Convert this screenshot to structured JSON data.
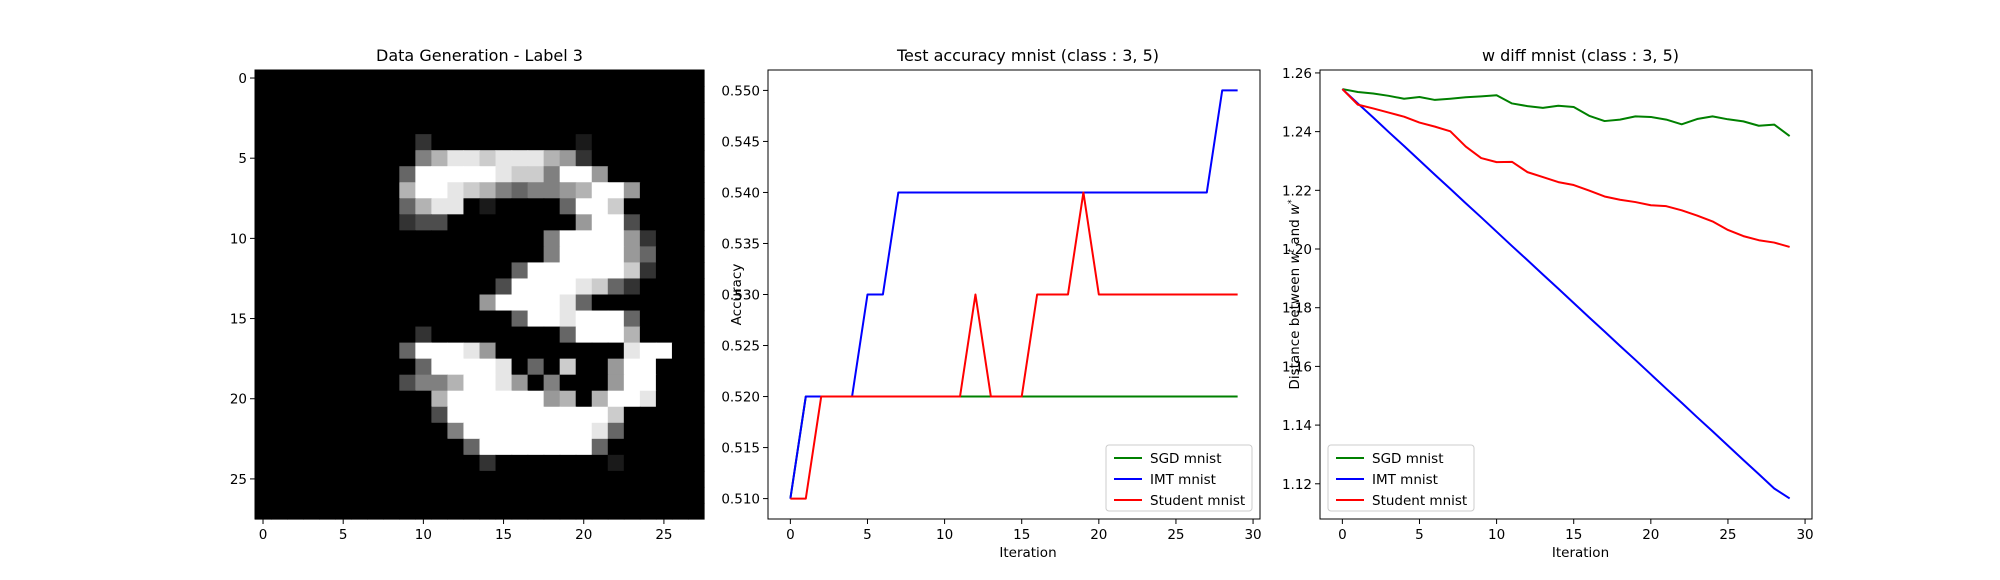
{
  "chart_data": [
    {
      "type": "heatmap",
      "title": "Data Generation - Label 3",
      "xlabel": "",
      "ylabel": "",
      "xticks": [
        0,
        5,
        10,
        15,
        20,
        25
      ],
      "yticks": [
        0,
        5,
        10,
        15,
        20,
        25
      ],
      "grid": false,
      "colormap": "gray",
      "image_rows": [
        "............................",
        "............................",
        "............................",
        "............................",
        "..........2.........1.......",
        "..........57998999762.......",
        ".........4aaaaa9885aa6......",
        ".........7aa987545567aa6....",
        ".........4799.1....4aa8.....",
        ".........233........6aa3....",
        "..................5aaaa62...",
        "..................5aaaa64...",
        "................4aaaaaa82...",
        "...............3aaaa9842....",
        "..............6aaaa94.......",
        "................4aa9aaa4....",
        "..........2........4aaa7....",
        ".........4aaa96........9aa...",
        "..........4aaaa9.4.8..6aa...",
        ".........3557aa96.5...6aa...",
        "...........7aaaaaa67.7aa9...",
        "...........3aaaaaaaaaa8.....",
        "............5aaaaaaaa94.....",
        ".............4aaaaaaa4......",
        "..............2.......1.....",
        "............................",
        "............................",
        "............................"
      ]
    },
    {
      "type": "line",
      "title": "Test accuracy mnist (class : 3, 5)",
      "xlabel": "Iteration",
      "ylabel": "Accuracy",
      "xlim": [
        -1.45,
        30.45
      ],
      "ylim": [
        0.508,
        0.552
      ],
      "xticks": [
        "0",
        "5",
        "10",
        "15",
        "20",
        "25",
        "30"
      ],
      "yticks": [
        "0.510",
        "0.515",
        "0.520",
        "0.525",
        "0.530",
        "0.535",
        "0.540",
        "0.545",
        "0.550"
      ],
      "grid": false,
      "legend": "lower-right",
      "x": [
        0,
        1,
        2,
        3,
        4,
        5,
        6,
        7,
        8,
        9,
        10,
        11,
        12,
        13,
        14,
        15,
        16,
        17,
        18,
        19,
        20,
        21,
        22,
        23,
        24,
        25,
        26,
        27,
        28,
        29
      ],
      "series": [
        {
          "name": "SGD mnist",
          "color": "#008000",
          "values": [
            0.51,
            0.52,
            0.52,
            0.52,
            0.52,
            0.52,
            0.52,
            0.52,
            0.52,
            0.52,
            0.52,
            0.52,
            0.52,
            0.52,
            0.52,
            0.52,
            0.52,
            0.52,
            0.52,
            0.52,
            0.52,
            0.52,
            0.52,
            0.52,
            0.52,
            0.52,
            0.52,
            0.52,
            0.52,
            0.52
          ]
        },
        {
          "name": "IMT mnist",
          "color": "#0000ff",
          "values": [
            0.51,
            0.52,
            0.52,
            0.52,
            0.52,
            0.53,
            0.53,
            0.54,
            0.54,
            0.54,
            0.54,
            0.54,
            0.54,
            0.54,
            0.54,
            0.54,
            0.54,
            0.54,
            0.54,
            0.54,
            0.54,
            0.54,
            0.54,
            0.54,
            0.54,
            0.54,
            0.54,
            0.54,
            0.55,
            0.55
          ]
        },
        {
          "name": "Student mnist",
          "color": "#ff0000",
          "values": [
            0.51,
            0.51,
            0.52,
            0.52,
            0.52,
            0.52,
            0.52,
            0.52,
            0.52,
            0.52,
            0.52,
            0.52,
            0.53,
            0.52,
            0.52,
            0.52,
            0.53,
            0.53,
            0.53,
            0.54,
            0.53,
            0.53,
            0.53,
            0.53,
            0.53,
            0.53,
            0.53,
            0.53,
            0.53,
            0.53
          ]
        }
      ]
    },
    {
      "type": "line",
      "title": "w diff mnist (class : 3, 5)",
      "xlabel": "Iteration",
      "ylabel": "Distance between w^t and w^*",
      "xlim": [
        -1.45,
        30.45
      ],
      "ylim": [
        1.108,
        1.261
      ],
      "xticks": [
        "0",
        "5",
        "10",
        "15",
        "20",
        "25",
        "30"
      ],
      "yticks": [
        "1.12",
        "1.14",
        "1.16",
        "1.18",
        "1.20",
        "1.22",
        "1.24",
        "1.26"
      ],
      "grid": false,
      "legend": "lower-left",
      "x": [
        0,
        1,
        2,
        3,
        4,
        5,
        6,
        7,
        8,
        9,
        10,
        11,
        12,
        13,
        14,
        15,
        16,
        17,
        18,
        19,
        20,
        21,
        22,
        23,
        24,
        25,
        26,
        27,
        28,
        29
      ],
      "series": [
        {
          "name": "SGD mnist",
          "color": "#008000",
          "values": [
            1.2545,
            1.2535,
            1.253,
            1.2522,
            1.2512,
            1.2518,
            1.2508,
            1.2512,
            1.2517,
            1.252,
            1.2524,
            1.2496,
            1.2487,
            1.2481,
            1.2488,
            1.2484,
            1.2454,
            1.2436,
            1.2441,
            1.2452,
            1.245,
            1.2441,
            1.2425,
            1.2443,
            1.2452,
            1.2442,
            1.2435,
            1.242,
            1.2424,
            1.2385
          ]
        },
        {
          "name": "IMT mnist",
          "color": "#0000ff",
          "values": [
            1.2545,
            1.2496,
            1.2448,
            1.2399,
            1.2351,
            1.2302,
            1.2253,
            1.2205,
            1.2156,
            1.2108,
            1.2059,
            1.201,
            1.1962,
            1.1913,
            1.1865,
            1.1816,
            1.1767,
            1.1719,
            1.167,
            1.1622,
            1.1573,
            1.1524,
            1.1476,
            1.1427,
            1.1379,
            1.133,
            1.1281,
            1.1233,
            1.1184,
            1.115
          ]
        },
        {
          "name": "Student mnist",
          "color": "#ff0000",
          "values": [
            1.2545,
            1.2492,
            1.2479,
            1.2465,
            1.2451,
            1.2431,
            1.2417,
            1.2401,
            1.2349,
            1.231,
            1.2296,
            1.2297,
            1.2262,
            1.2245,
            1.2228,
            1.2218,
            1.2199,
            1.2179,
            1.2168,
            1.216,
            1.2149,
            1.2146,
            1.2132,
            1.2114,
            1.2094,
            1.2065,
            1.2044,
            1.203,
            1.2022,
            1.2007
          ]
        }
      ]
    }
  ]
}
